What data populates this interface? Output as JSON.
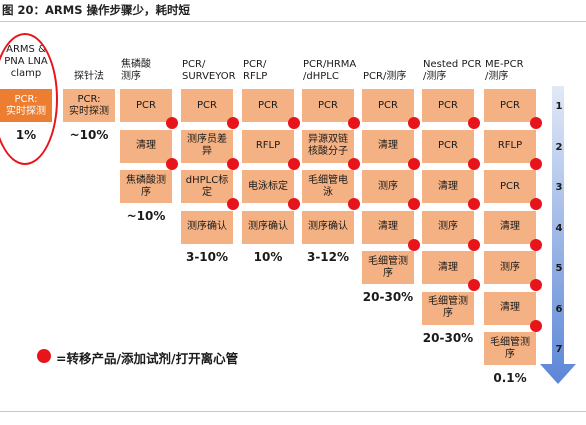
{
  "figure_title": "图 20：ARMS 操作步骤少，耗时短",
  "colors": {
    "box": "#f4b183",
    "box_highlight": "#ed7d31",
    "transfer_dot": "#e8141c",
    "arrow_gradient_top": "#e2e9f7",
    "arrow_gradient_bottom": "#5b86d6"
  },
  "columns": [
    {
      "id": "arms",
      "heading": [
        "ARMS &",
        "PNA LNA",
        "clamp"
      ],
      "steps": [
        "PCR:\n实时探测"
      ],
      "dots_after": [],
      "percent": "1%"
    },
    {
      "id": "probe",
      "heading": [
        "探针法"
      ],
      "steps": [
        "PCR:\n实时探测"
      ],
      "dots_after": [],
      "percent": "~10%"
    },
    {
      "id": "pyro",
      "heading": [
        "焦磷酸",
        "测序"
      ],
      "steps": [
        "PCR",
        "清理",
        "焦磷酸测\n序"
      ],
      "dots_after": [
        1,
        2
      ],
      "percent": "~10%"
    },
    {
      "id": "surveyor",
      "heading": [
        "PCR/",
        "SURVEYOR"
      ],
      "steps": [
        "PCR",
        "测序员差\n异",
        "dHPLC标\n定",
        "测序确认"
      ],
      "dots_after": [
        1,
        2,
        3
      ],
      "percent": "3-10%"
    },
    {
      "id": "rflp",
      "heading": [
        "PCR/",
        "RFLP"
      ],
      "steps": [
        "PCR",
        "RFLP",
        "电泳标定",
        "测序确认"
      ],
      "dots_after": [
        1,
        2,
        3
      ],
      "percent": "10%"
    },
    {
      "id": "hrma",
      "heading": [
        "PCR/HRMA",
        "/dHPLC"
      ],
      "steps": [
        "PCR",
        "异源双链\n核酸分子",
        "毛细管电\n泳",
        "测序确认"
      ],
      "dots_after": [
        1,
        2,
        3
      ],
      "percent": "3-12%"
    },
    {
      "id": "seq",
      "heading": [
        "PCR/测序"
      ],
      "steps": [
        "PCR",
        "清理",
        "测序",
        "清理",
        "毛细管测\n序"
      ],
      "dots_after": [
        1,
        2,
        3,
        4
      ],
      "percent": "20-30%"
    },
    {
      "id": "nested",
      "heading": [
        "Nested PCR",
        "/测序"
      ],
      "steps": [
        "PCR",
        "PCR",
        "清理",
        "测序",
        "清理",
        "毛细管测\n序"
      ],
      "dots_after": [
        1,
        2,
        3,
        4,
        5
      ],
      "percent": "20-30%"
    },
    {
      "id": "me",
      "heading": [
        "ME-PCR",
        "/测序"
      ],
      "steps": [
        "PCR",
        "RFLP",
        "PCR",
        "清理",
        "测序",
        "清理",
        "毛细管测\n序"
      ],
      "dots_after": [
        1,
        2,
        3,
        4,
        5,
        6
      ],
      "percent": "0.1%"
    }
  ],
  "step_numbers": [
    "1",
    "2",
    "3",
    "4",
    "5",
    "6",
    "7"
  ],
  "legend": "=转移产品/添加试剂/打开离心管"
}
